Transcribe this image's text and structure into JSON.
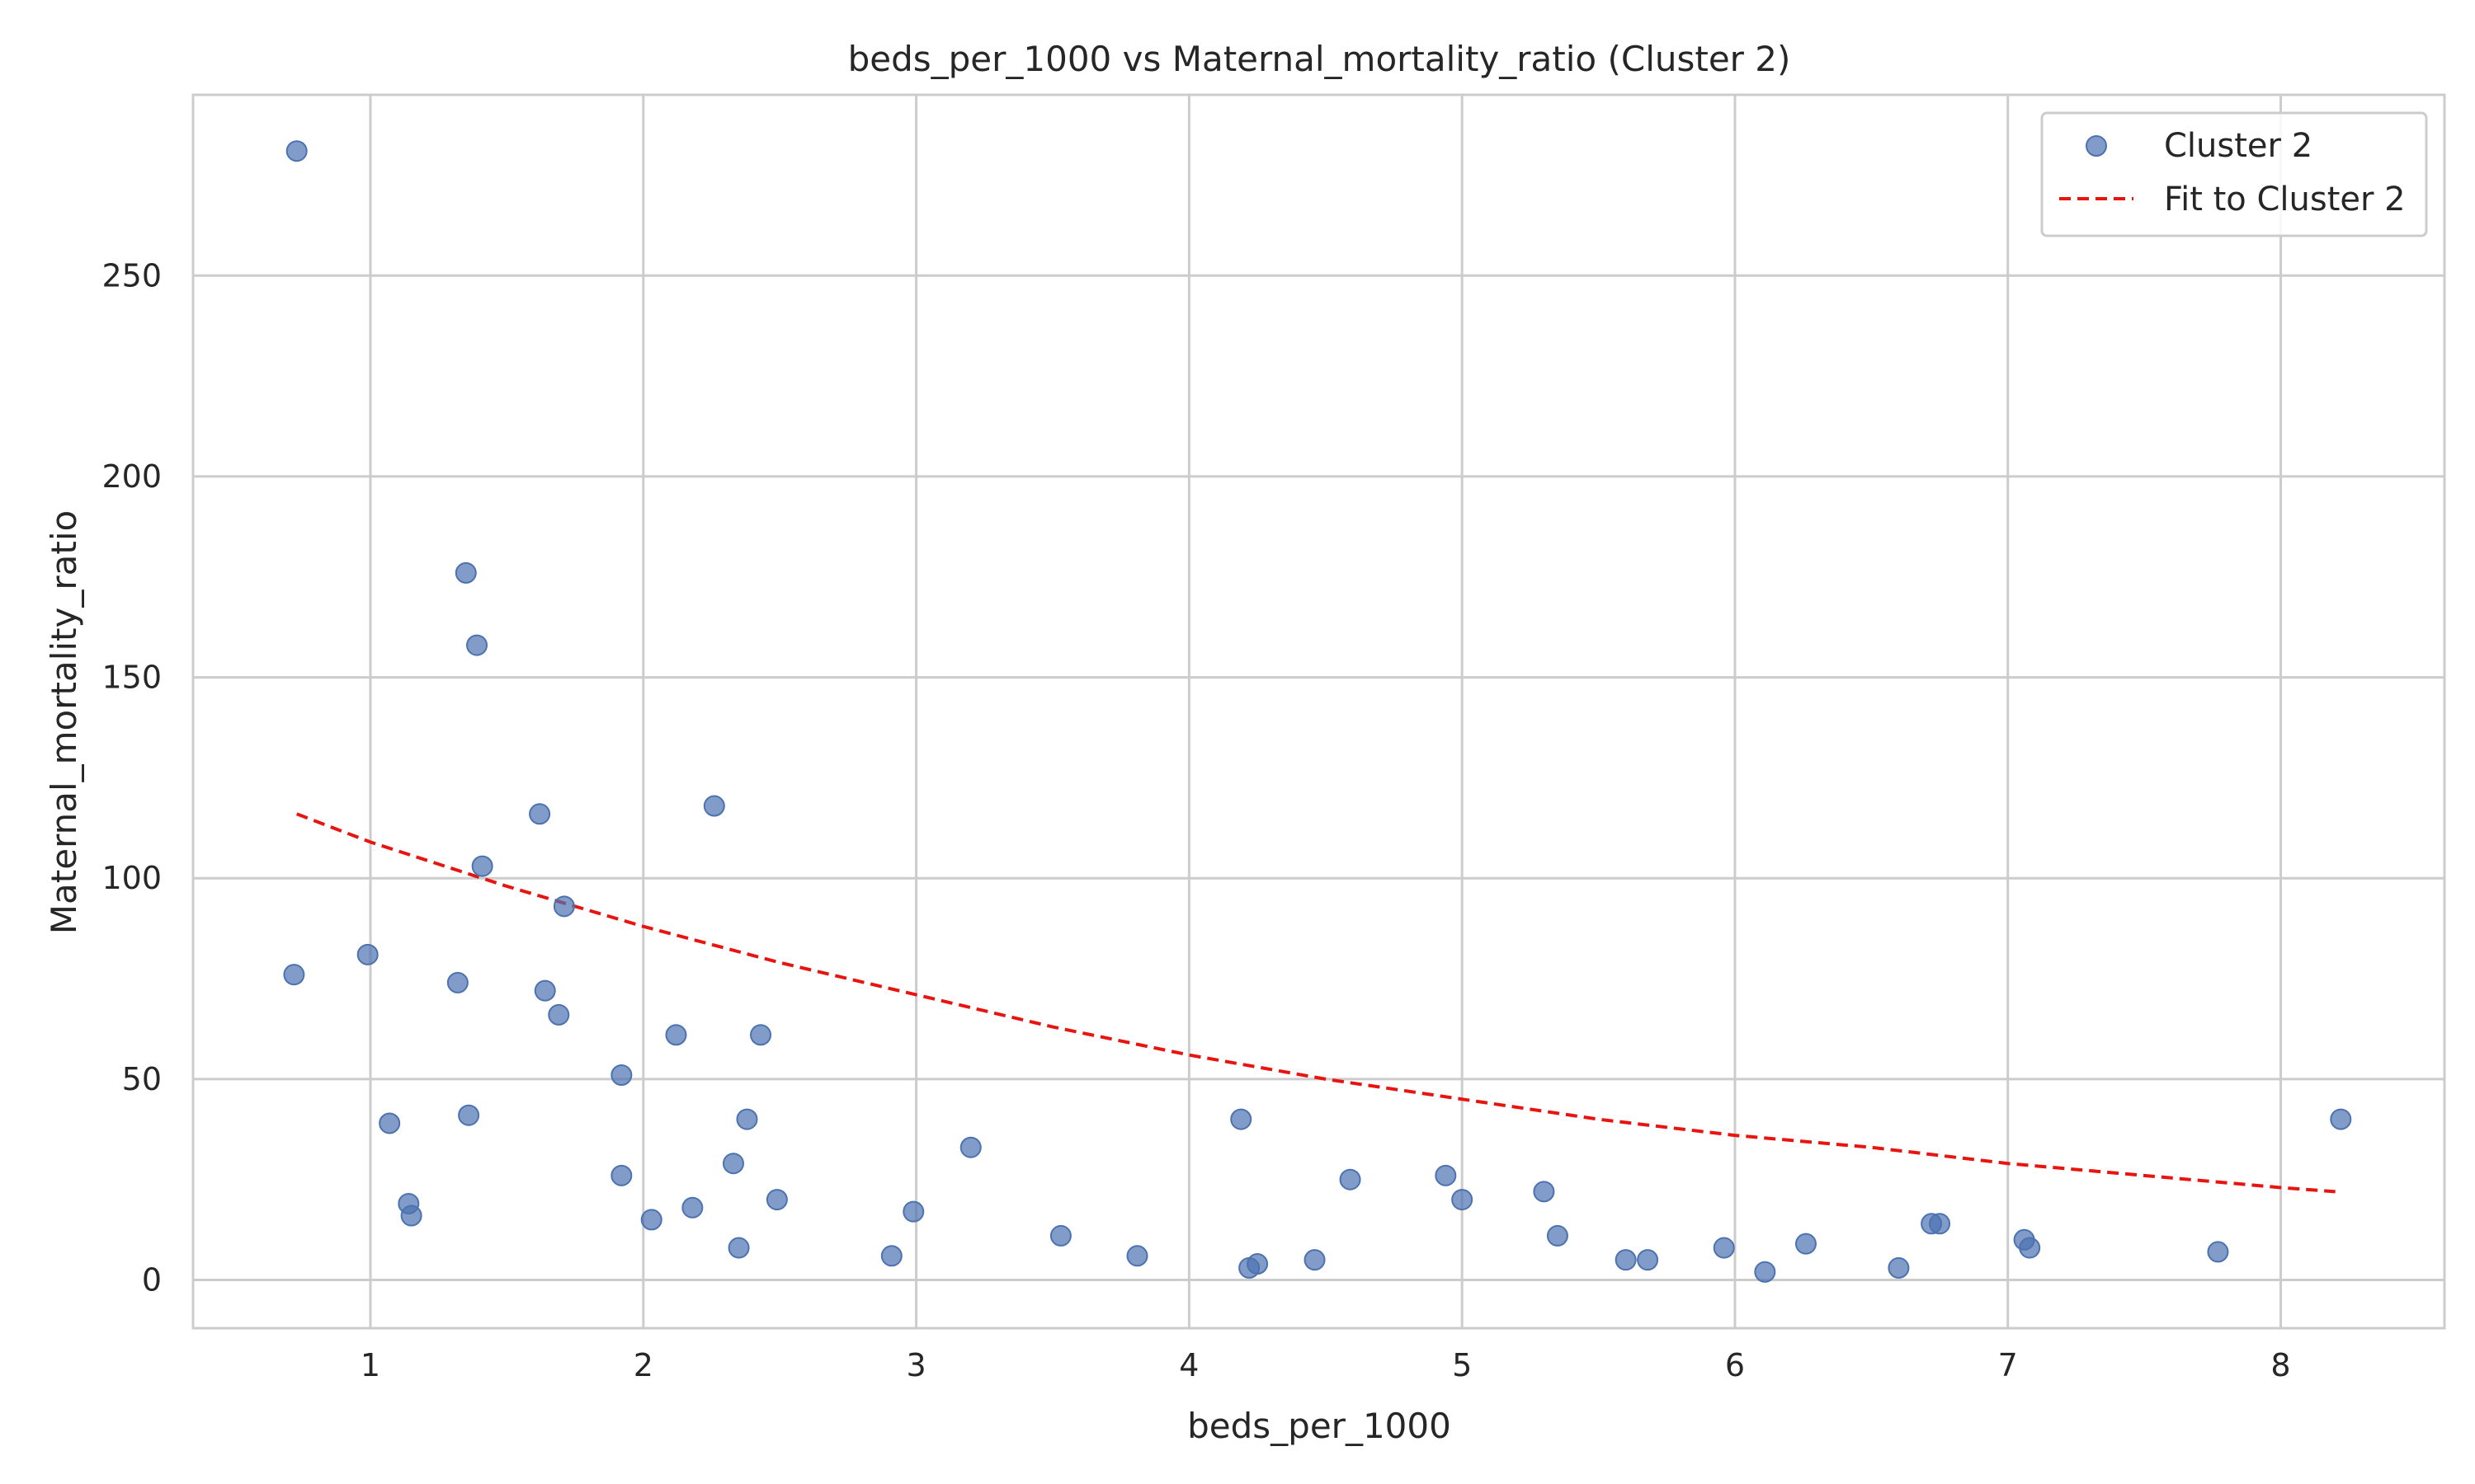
{
  "chart_data": {
    "type": "scatter",
    "title": "beds_per_1000 vs Maternal_mortality_ratio (Cluster 2)",
    "xlabel": "beds_per_1000",
    "ylabel": "Maternal_mortality_ratio",
    "xlim": [
      0.35,
      8.6
    ],
    "ylim": [
      -12,
      295
    ],
    "xticks": [
      1,
      2,
      3,
      4,
      5,
      6,
      7,
      8
    ],
    "yticks": [
      0,
      50,
      100,
      150,
      200,
      250
    ],
    "grid": true,
    "legend_position": "top-right",
    "colors": {
      "points": "#4c72b0",
      "fit": "#e8140f",
      "grid": "#cccccc",
      "frame": "#cccccc"
    },
    "series": [
      {
        "name": "Cluster 2",
        "kind": "scatter",
        "points": [
          [
            0.73,
            281
          ],
          [
            0.72,
            76
          ],
          [
            0.99,
            81
          ],
          [
            1.07,
            39
          ],
          [
            1.14,
            19
          ],
          [
            1.15,
            16
          ],
          [
            1.32,
            74
          ],
          [
            1.35,
            176
          ],
          [
            1.36,
            41
          ],
          [
            1.39,
            158
          ],
          [
            1.41,
            103
          ],
          [
            1.62,
            116
          ],
          [
            1.64,
            72
          ],
          [
            1.69,
            66
          ],
          [
            1.71,
            93
          ],
          [
            1.92,
            51
          ],
          [
            1.92,
            26
          ],
          [
            2.03,
            15
          ],
          [
            2.12,
            61
          ],
          [
            2.18,
            18
          ],
          [
            2.26,
            118
          ],
          [
            2.33,
            29
          ],
          [
            2.35,
            8
          ],
          [
            2.38,
            40
          ],
          [
            2.43,
            61
          ],
          [
            2.49,
            20
          ],
          [
            2.91,
            6
          ],
          [
            2.99,
            17
          ],
          [
            3.2,
            33
          ],
          [
            3.53,
            11
          ],
          [
            3.81,
            6
          ],
          [
            4.19,
            40
          ],
          [
            4.22,
            3
          ],
          [
            4.25,
            4
          ],
          [
            4.46,
            5
          ],
          [
            4.59,
            25
          ],
          [
            4.94,
            26
          ],
          [
            5.0,
            20
          ],
          [
            5.3,
            22
          ],
          [
            5.35,
            11
          ],
          [
            5.6,
            5
          ],
          [
            5.68,
            5
          ],
          [
            5.96,
            8
          ],
          [
            6.11,
            2
          ],
          [
            6.26,
            9
          ],
          [
            6.6,
            3
          ],
          [
            6.72,
            14
          ],
          [
            6.75,
            14
          ],
          [
            7.06,
            10
          ],
          [
            7.08,
            8
          ],
          [
            7.77,
            7
          ],
          [
            8.22,
            40
          ]
        ]
      },
      {
        "name": "Fit to Cluster 2",
        "kind": "line",
        "style": "dashed",
        "x": [
          0.73,
          1.0,
          1.5,
          2.0,
          2.5,
          3.0,
          3.5,
          4.0,
          4.5,
          5.0,
          5.5,
          6.0,
          6.5,
          7.0,
          7.5,
          8.0,
          8.2
        ],
        "y": [
          116,
          109,
          98,
          88,
          79,
          71,
          63,
          56,
          50,
          45,
          40,
          36,
          33,
          29,
          26,
          23,
          22
        ]
      }
    ]
  }
}
